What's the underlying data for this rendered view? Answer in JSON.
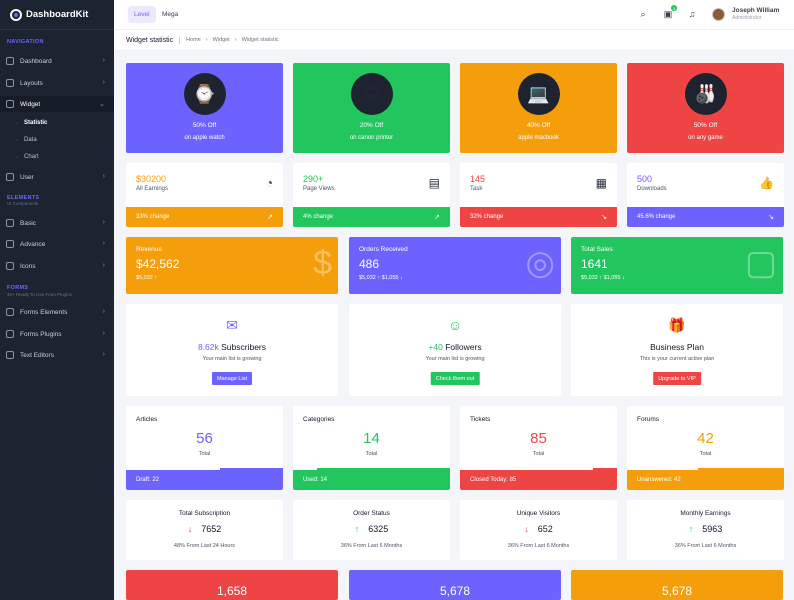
{
  "brand": "DashboardKit",
  "sidebar": {
    "nav_section": "NAVIGATION",
    "items": [
      "Dashboard",
      "Layouts",
      "Widget"
    ],
    "subitems": [
      "Statistic",
      "Data",
      "Chart"
    ],
    "user": "User",
    "elements_section": "ELEMENTS",
    "elements_sub": "UI Components",
    "elements": [
      "Basic",
      "Advance",
      "Icons"
    ],
    "forms_section": "FORMS",
    "forms_sub": "40+ Ready To Use From Plugins",
    "forms": [
      "Forms Elements",
      "Forms Plugins",
      "Text Editors"
    ]
  },
  "header": {
    "level": "Level",
    "mega": "Mega",
    "user_name": "Joseph William",
    "user_role": "Administrator",
    "msg_count": "3"
  },
  "page": {
    "title": "Widget statistic",
    "crumbs": [
      "Home",
      "Widget",
      "Widget statistic"
    ]
  },
  "promos": [
    {
      "l1": "50% Off",
      "l2": "on apple watch",
      "icon": "⌚"
    },
    {
      "l1": "20% Off",
      "l2": "on canon printer",
      "icon": "🖨"
    },
    {
      "l1": "40% Off",
      "l2": "apple macbook",
      "icon": "💻"
    },
    {
      "l1": "50% Off",
      "l2": "on any game",
      "icon": "🎳"
    }
  ],
  "stats": [
    {
      "value": "$30200",
      "label": "All Earnings",
      "change": "33% change",
      "icon": "◔",
      "color": "#f59e0b"
    },
    {
      "value": "290+",
      "label": "Page Views",
      "change": "4% change",
      "icon": "▤",
      "color": "#22c55e"
    },
    {
      "value": "145",
      "label": "Task",
      "change": "32% change",
      "icon": "▦",
      "color": "#ef4444"
    },
    {
      "value": "500",
      "label": "Downloads",
      "change": "45.6% change",
      "icon": "👍",
      "color": "#6c63ff"
    }
  ],
  "big": [
    {
      "title": "Revenue",
      "value": "$42,562",
      "sub": "$5,032  ↑",
      "icon": "$"
    },
    {
      "title": "Orders Received",
      "value": "486",
      "sub": "$5,032  ↑  $1,055 ↓",
      "icon": "◎"
    },
    {
      "title": "Total Sales",
      "value": "1641",
      "sub": "$5,032  ↑  $1,055 ↓",
      "icon": "▢"
    }
  ],
  "social": [
    {
      "num": "8.62k",
      "label": " Subscribers",
      "sub": "Your main list is growing",
      "btn": "Manage List",
      "icon": "✉"
    },
    {
      "num": "+40",
      "label": " Followers",
      "sub": "Your main list is growing",
      "btn": "Check them out",
      "icon": "☺"
    },
    {
      "num": "",
      "label": "Business Plan",
      "sub": "This is your current active plan",
      "btn": "Upgrade to VIP",
      "icon": "🎁"
    }
  ],
  "counts": [
    {
      "title": "Articles",
      "value": "56",
      "sub": "Total",
      "bar": "Draft: 22"
    },
    {
      "title": "Categories",
      "value": "14",
      "sub": "Total",
      "bar": "Used: 14"
    },
    {
      "title": "Tickets",
      "value": "85",
      "sub": "Total",
      "bar": "Closed Today: 85"
    },
    {
      "title": "Forums",
      "value": "42",
      "sub": "Total",
      "bar": "Unanswered: 42"
    }
  ],
  "trends": [
    {
      "title": "Total Subscription",
      "value": "7652",
      "sub": "48% From Last 24 Hours",
      "dir": "↓"
    },
    {
      "title": "Order Status",
      "value": "6325",
      "sub": "36% From Last 6 Months",
      "dir": "↑"
    },
    {
      "title": "Unique Visitors",
      "value": "652",
      "sub": "36% From Last 6 Months",
      "dir": "↓"
    },
    {
      "title": "Monthly Earnings",
      "value": "5963",
      "sub": "36% From Last 6 Months",
      "dir": "↑"
    }
  ],
  "bottom": [
    "1,658",
    "5,678",
    "5,678"
  ]
}
